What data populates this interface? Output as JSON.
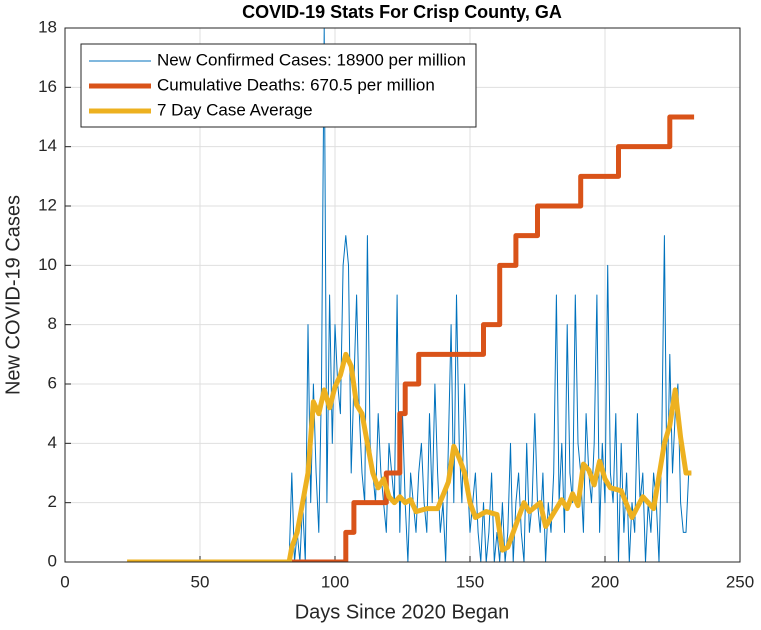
{
  "chart_data": {
    "type": "line",
    "title": "COVID-19 Stats For Crisp County, GA",
    "xlabel": "Days Since 2020 Began",
    "ylabel": "New COVID-19 Cases",
    "xlim": [
      0,
      250
    ],
    "xticks": [
      0,
      50,
      100,
      150,
      200,
      250
    ],
    "ylim": [
      0,
      18
    ],
    "yticks": [
      0,
      2,
      4,
      6,
      8,
      10,
      12,
      14,
      16,
      18
    ],
    "grid": true,
    "legend": "upper left",
    "series": [
      {
        "name": "New Confirmed Cases: 18900 per million",
        "color": "#0072BD",
        "width": 1,
        "x": [
          23,
          83,
          84,
          85,
          86,
          87,
          88,
          89,
          90,
          91,
          92,
          93,
          94,
          95,
          96,
          97,
          98,
          99,
          100,
          101,
          102,
          103,
          104,
          105,
          106,
          107,
          108,
          109,
          110,
          111,
          112,
          113,
          114,
          115,
          116,
          117,
          118,
          119,
          120,
          121,
          122,
          123,
          124,
          125,
          126,
          127,
          128,
          129,
          130,
          131,
          132,
          133,
          134,
          135,
          136,
          137,
          138,
          139,
          140,
          141,
          142,
          143,
          144,
          145,
          146,
          147,
          148,
          149,
          150,
          151,
          152,
          153,
          154,
          155,
          156,
          157,
          158,
          159,
          160,
          161,
          162,
          163,
          164,
          165,
          166,
          167,
          168,
          169,
          170,
          171,
          172,
          173,
          174,
          175,
          176,
          177,
          178,
          179,
          180,
          181,
          182,
          183,
          184,
          185,
          186,
          187,
          188,
          189,
          190,
          191,
          192,
          193,
          194,
          195,
          196,
          197,
          198,
          199,
          200,
          201,
          202,
          203,
          204,
          205,
          206,
          207,
          208,
          209,
          210,
          211,
          212,
          213,
          214,
          215,
          216,
          217,
          218,
          219,
          220,
          221,
          222,
          223,
          224,
          225,
          226,
          227,
          228,
          229,
          230,
          231,
          232
        ],
        "values": [
          0,
          0,
          3,
          0,
          1,
          0,
          2,
          0,
          8,
          2,
          6,
          3,
          1,
          6,
          18,
          2,
          9,
          4,
          8,
          6,
          5,
          10,
          11,
          10,
          3,
          6,
          9,
          5,
          3,
          2,
          11,
          4,
          3,
          2,
          5,
          3,
          2,
          1,
          4,
          3,
          2,
          9,
          1,
          5,
          2,
          0,
          3,
          2,
          1,
          3,
          4,
          2,
          1,
          5,
          2,
          6,
          3,
          1,
          2,
          0,
          4,
          8,
          2,
          9,
          4,
          2,
          6,
          3,
          1,
          2,
          3,
          1,
          0,
          2,
          0,
          1,
          3,
          0,
          1,
          0,
          2,
          0,
          1,
          4,
          0,
          2,
          3,
          1,
          0,
          4,
          1,
          2,
          5,
          2,
          1,
          3,
          0,
          2,
          1,
          3,
          9,
          2,
          4,
          1,
          8,
          3,
          2,
          9,
          4,
          3,
          1,
          5,
          3,
          2,
          4,
          9,
          1,
          4,
          2,
          10,
          3,
          2,
          5,
          0,
          4,
          1,
          3,
          0,
          2,
          1,
          5,
          2,
          3,
          0,
          2,
          1,
          3,
          2,
          0,
          4,
          11,
          2,
          7,
          3,
          5,
          6,
          2,
          1,
          1,
          3,
          3
        ]
      },
      {
        "name": "Cumulative Deaths: 670.5 per million",
        "color": "#D95319",
        "width": 5,
        "x": [
          84,
          104,
          104,
          107,
          107,
          119,
          119,
          124,
          124,
          126,
          126,
          131,
          131,
          155,
          155,
          161,
          161,
          167,
          167,
          175,
          175,
          191,
          191,
          205,
          205,
          224,
          224,
          233
        ],
        "values": [
          0,
          0,
          1,
          1,
          2,
          2,
          3,
          3,
          5,
          5,
          6,
          6,
          7,
          7,
          8,
          8,
          10,
          10,
          11,
          11,
          12,
          12,
          13,
          13,
          14,
          14,
          15,
          15
        ]
      },
      {
        "name": "7 Day Case Average",
        "color": "#EDB120",
        "width": 5,
        "x": [
          23,
          83,
          84,
          86,
          88,
          90,
          92,
          94,
          96,
          98,
          100,
          102,
          104,
          106,
          108,
          110,
          112,
          114,
          116,
          118,
          120,
          122,
          124,
          126,
          128,
          130,
          134,
          138,
          142,
          144,
          146,
          148,
          150,
          152,
          156,
          160,
          162,
          164,
          166,
          170,
          172,
          176,
          178,
          180,
          184,
          186,
          188,
          190,
          192,
          194,
          196,
          198,
          200,
          202,
          206,
          210,
          214,
          218,
          222,
          224,
          226,
          228,
          230,
          232
        ],
        "values": [
          0,
          0,
          0.5,
          1,
          2,
          3,
          5.4,
          5,
          5.8,
          5.2,
          5.9,
          6.3,
          7,
          6.6,
          5.3,
          5,
          4,
          3,
          2.5,
          2.8,
          2.2,
          2,
          2.2,
          2,
          2.1,
          1.7,
          1.8,
          1.8,
          2.7,
          3.9,
          3.5,
          3,
          2,
          1.5,
          1.7,
          1.6,
          0.4,
          0.5,
          1,
          2,
          1.7,
          2,
          1.2,
          1.5,
          2.1,
          1.8,
          2.3,
          1.9,
          3.3,
          3.1,
          2.6,
          3.4,
          2.8,
          2.5,
          2.4,
          1.5,
          2.2,
          1.8,
          4,
          4.6,
          5.8,
          4.2,
          3,
          3
        ]
      }
    ]
  }
}
